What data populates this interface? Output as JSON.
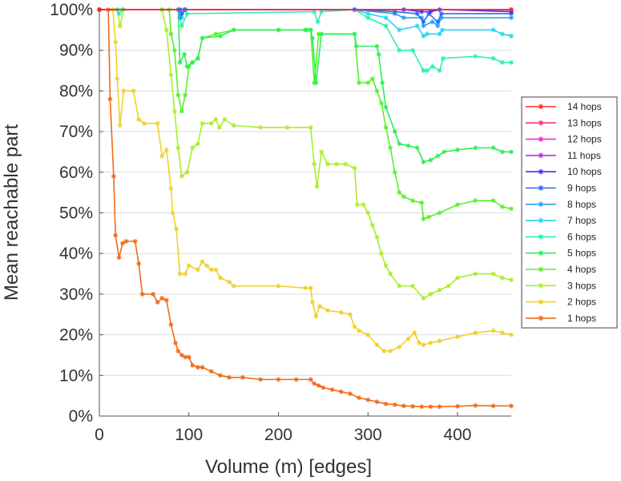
{
  "chart_data": {
    "type": "line",
    "title": "",
    "xlabel": "Volume (m) [edges]",
    "ylabel": "Mean reachable part",
    "xlim": [
      0,
      460
    ],
    "ylim": [
      0,
      100
    ],
    "xticks": [
      0,
      100,
      200,
      300,
      400
    ],
    "yticks": [
      0,
      10,
      20,
      30,
      40,
      50,
      60,
      70,
      80,
      90,
      100
    ],
    "ytick_labels": [
      "0%",
      "10%",
      "20%",
      "30%",
      "40%",
      "50%",
      "60%",
      "70%",
      "80%",
      "90%",
      "100%"
    ],
    "grid": "horizontal",
    "legend_position": "right",
    "marker": "asterisk",
    "series": [
      {
        "name": "14 hops",
        "color": "#ff2a2a",
        "points": [
          [
            0,
            100
          ],
          [
            460,
            100
          ]
        ]
      },
      {
        "name": "13 hops",
        "color": "#ff2a7f",
        "points": [
          [
            0,
            100
          ],
          [
            460,
            100
          ]
        ]
      },
      {
        "name": "12 hops",
        "color": "#f02ad0",
        "points": [
          [
            0,
            100
          ],
          [
            460,
            100
          ]
        ]
      },
      {
        "name": "11 hops",
        "color": "#c02af0",
        "points": [
          [
            0,
            100
          ],
          [
            460,
            100
          ]
        ]
      },
      {
        "name": "10 hops",
        "color": "#4a2af0",
        "points": [
          [
            0,
            100
          ],
          [
            340,
            100
          ],
          [
            360,
            99.5
          ],
          [
            370,
            99.5
          ],
          [
            380,
            100
          ],
          [
            460,
            99.5
          ]
        ]
      },
      {
        "name": "9 hops",
        "color": "#2a6af0",
        "points": [
          [
            0,
            100
          ],
          [
            90,
            100
          ],
          [
            92,
            99
          ],
          [
            96,
            100
          ],
          [
            285,
            100
          ],
          [
            330,
            99.5
          ],
          [
            355,
            99
          ],
          [
            362,
            97
          ],
          [
            368,
            99
          ],
          [
            378,
            97
          ],
          [
            382,
            99
          ],
          [
            460,
            99
          ]
        ]
      },
      {
        "name": "8 hops",
        "color": "#2aa0f0",
        "points": [
          [
            0,
            100
          ],
          [
            88,
            100
          ],
          [
            90,
            98
          ],
          [
            95,
            100
          ],
          [
            285,
            100
          ],
          [
            330,
            99
          ],
          [
            340,
            98
          ],
          [
            360,
            98
          ],
          [
            362,
            96
          ],
          [
            372,
            97
          ],
          [
            378,
            96
          ],
          [
            382,
            98
          ],
          [
            460,
            98
          ]
        ]
      },
      {
        "name": "7 hops",
        "color": "#2ad4f0",
        "points": [
          [
            0,
            100
          ],
          [
            90,
            100
          ],
          [
            92,
            98
          ],
          [
            95,
            100
          ],
          [
            285,
            100
          ],
          [
            300,
            99
          ],
          [
            320,
            98
          ],
          [
            335,
            95
          ],
          [
            355,
            96
          ],
          [
            362,
            93.5
          ],
          [
            366,
            94
          ],
          [
            380,
            94
          ],
          [
            383,
            95
          ],
          [
            440,
            95
          ],
          [
            450,
            94
          ],
          [
            460,
            93.5
          ]
        ]
      },
      {
        "name": "6 hops",
        "color": "#2af0b0",
        "points": [
          [
            0,
            100
          ],
          [
            20,
            100
          ],
          [
            22,
            99
          ],
          [
            26,
            100
          ],
          [
            88,
            100
          ],
          [
            92,
            96
          ],
          [
            98,
            99
          ],
          [
            240,
            99.5
          ],
          [
            244,
            97
          ],
          [
            248,
            99.5
          ],
          [
            285,
            100
          ],
          [
            300,
            98
          ],
          [
            320,
            96
          ],
          [
            335,
            90
          ],
          [
            350,
            90
          ],
          [
            362,
            85
          ],
          [
            366,
            85
          ],
          [
            372,
            86
          ],
          [
            380,
            85
          ],
          [
            384,
            88
          ],
          [
            420,
            88.5
          ],
          [
            440,
            88
          ],
          [
            450,
            87
          ],
          [
            460,
            87
          ]
        ]
      },
      {
        "name": "5 hops",
        "color": "#2af055",
        "points": [
          [
            0,
            100
          ],
          [
            88,
            100
          ],
          [
            90,
            87
          ],
          [
            95,
            89
          ],
          [
            98,
            86
          ],
          [
            104,
            87
          ],
          [
            110,
            88
          ],
          [
            115,
            93
          ],
          [
            135,
            93.5
          ],
          [
            150,
            95
          ],
          [
            200,
            95
          ],
          [
            230,
            95
          ],
          [
            236,
            95
          ],
          [
            238,
            93
          ],
          [
            242,
            82
          ],
          [
            248,
            94
          ],
          [
            285,
            94
          ],
          [
            287,
            91
          ],
          [
            310,
            91
          ],
          [
            312,
            89
          ],
          [
            316,
            82
          ],
          [
            320,
            76
          ],
          [
            330,
            70
          ],
          [
            335,
            67
          ],
          [
            345,
            66.5
          ],
          [
            355,
            66
          ],
          [
            362,
            62.5
          ],
          [
            370,
            63
          ],
          [
            378,
            64
          ],
          [
            385,
            65
          ],
          [
            400,
            65.5
          ],
          [
            420,
            66
          ],
          [
            440,
            66
          ],
          [
            450,
            65
          ],
          [
            460,
            65
          ]
        ]
      },
      {
        "name": "4 hops",
        "color": "#5af02a",
        "points": [
          [
            0,
            100
          ],
          [
            70,
            100
          ],
          [
            78,
            100
          ],
          [
            80,
            94
          ],
          [
            84,
            90
          ],
          [
            88,
            79
          ],
          [
            92,
            75
          ],
          [
            96,
            79
          ],
          [
            100,
            86
          ],
          [
            104,
            87
          ],
          [
            110,
            88
          ],
          [
            115,
            93
          ],
          [
            130,
            94
          ],
          [
            150,
            95
          ],
          [
            200,
            95
          ],
          [
            232,
            95
          ],
          [
            236,
            95
          ],
          [
            240,
            82
          ],
          [
            245,
            94
          ],
          [
            285,
            94
          ],
          [
            290,
            82
          ],
          [
            300,
            82
          ],
          [
            305,
            83
          ],
          [
            310,
            80
          ],
          [
            315,
            77
          ],
          [
            320,
            71
          ],
          [
            325,
            66
          ],
          [
            330,
            60
          ],
          [
            335,
            55
          ],
          [
            340,
            54
          ],
          [
            350,
            53
          ],
          [
            360,
            52.5
          ],
          [
            362,
            48.5
          ],
          [
            368,
            49
          ],
          [
            380,
            50
          ],
          [
            400,
            52
          ],
          [
            420,
            53
          ],
          [
            440,
            53
          ],
          [
            450,
            51.5
          ],
          [
            460,
            51
          ]
        ]
      },
      {
        "name": "3 hops",
        "color": "#aaee2a",
        "points": [
          [
            0,
            100
          ],
          [
            20,
            100
          ],
          [
            23,
            96
          ],
          [
            27,
            100
          ],
          [
            70,
            100
          ],
          [
            75,
            95
          ],
          [
            80,
            84
          ],
          [
            84,
            75
          ],
          [
            88,
            66
          ],
          [
            92,
            59
          ],
          [
            98,
            60
          ],
          [
            104,
            66
          ],
          [
            110,
            67
          ],
          [
            115,
            72
          ],
          [
            125,
            72
          ],
          [
            130,
            73
          ],
          [
            134,
            71
          ],
          [
            140,
            73
          ],
          [
            150,
            71.5
          ],
          [
            180,
            71
          ],
          [
            210,
            71
          ],
          [
            236,
            71
          ],
          [
            240,
            62
          ],
          [
            243,
            56.5
          ],
          [
            248,
            65
          ],
          [
            255,
            62
          ],
          [
            265,
            62
          ],
          [
            275,
            62
          ],
          [
            285,
            61
          ],
          [
            288,
            52
          ],
          [
            295,
            52
          ],
          [
            300,
            50
          ],
          [
            305,
            47
          ],
          [
            310,
            44
          ],
          [
            315,
            40
          ],
          [
            320,
            37
          ],
          [
            325,
            35
          ],
          [
            335,
            32
          ],
          [
            350,
            32
          ],
          [
            362,
            29
          ],
          [
            370,
            30
          ],
          [
            380,
            31
          ],
          [
            390,
            32
          ],
          [
            400,
            34
          ],
          [
            420,
            35
          ],
          [
            440,
            35
          ],
          [
            450,
            34
          ],
          [
            460,
            33.5
          ]
        ]
      },
      {
        "name": "2 hops",
        "color": "#f0d02a",
        "points": [
          [
            0,
            100
          ],
          [
            15,
            100
          ],
          [
            18,
            92
          ],
          [
            20,
            83
          ],
          [
            23,
            71.5
          ],
          [
            27,
            80
          ],
          [
            38,
            80
          ],
          [
            44,
            73
          ],
          [
            50,
            72
          ],
          [
            65,
            72
          ],
          [
            70,
            64
          ],
          [
            75,
            65.5
          ],
          [
            80,
            56
          ],
          [
            82,
            50
          ],
          [
            86,
            46
          ],
          [
            90,
            35
          ],
          [
            96,
            35
          ],
          [
            100,
            37
          ],
          [
            110,
            36
          ],
          [
            115,
            38
          ],
          [
            120,
            37
          ],
          [
            125,
            36
          ],
          [
            130,
            36
          ],
          [
            135,
            34
          ],
          [
            145,
            33
          ],
          [
            150,
            32
          ],
          [
            200,
            32
          ],
          [
            230,
            31.5
          ],
          [
            236,
            31.5
          ],
          [
            238,
            28
          ],
          [
            242,
            24.5
          ],
          [
            246,
            27
          ],
          [
            255,
            26
          ],
          [
            270,
            25.5
          ],
          [
            280,
            25
          ],
          [
            285,
            22
          ],
          [
            290,
            21
          ],
          [
            300,
            20
          ],
          [
            310,
            17.5
          ],
          [
            318,
            16
          ],
          [
            325,
            16
          ],
          [
            335,
            17
          ],
          [
            345,
            19
          ],
          [
            352,
            20.5
          ],
          [
            357,
            18
          ],
          [
            362,
            17.5
          ],
          [
            370,
            18
          ],
          [
            380,
            18.5
          ],
          [
            400,
            19.5
          ],
          [
            420,
            20.5
          ],
          [
            440,
            21
          ],
          [
            450,
            20.5
          ],
          [
            460,
            20
          ]
        ]
      },
      {
        "name": "1 hops",
        "color": "#f06a1a",
        "points": [
          [
            0,
            100
          ],
          [
            10,
            100
          ],
          [
            12,
            78
          ],
          [
            16,
            59
          ],
          [
            18,
            44.5
          ],
          [
            22,
            39
          ],
          [
            26,
            42.5
          ],
          [
            30,
            43
          ],
          [
            40,
            43
          ],
          [
            44,
            37.5
          ],
          [
            48,
            30
          ],
          [
            60,
            30
          ],
          [
            65,
            28
          ],
          [
            70,
            29
          ],
          [
            75,
            28.5
          ],
          [
            80,
            22.5
          ],
          [
            85,
            18
          ],
          [
            88,
            16
          ],
          [
            92,
            15
          ],
          [
            96,
            14.5
          ],
          [
            100,
            14.5
          ],
          [
            104,
            12.5
          ],
          [
            110,
            12
          ],
          [
            115,
            12
          ],
          [
            125,
            11
          ],
          [
            135,
            10
          ],
          [
            145,
            9.5
          ],
          [
            160,
            9.5
          ],
          [
            180,
            9
          ],
          [
            200,
            9
          ],
          [
            220,
            9
          ],
          [
            236,
            9
          ],
          [
            240,
            8
          ],
          [
            245,
            7.5
          ],
          [
            250,
            7
          ],
          [
            260,
            6.5
          ],
          [
            270,
            6
          ],
          [
            280,
            5.5
          ],
          [
            290,
            4.5
          ],
          [
            300,
            4
          ],
          [
            310,
            3.5
          ],
          [
            320,
            3
          ],
          [
            330,
            2.8
          ],
          [
            340,
            2.5
          ],
          [
            350,
            2.4
          ],
          [
            360,
            2.3
          ],
          [
            370,
            2.3
          ],
          [
            380,
            2.3
          ],
          [
            400,
            2.4
          ],
          [
            420,
            2.6
          ],
          [
            440,
            2.5
          ],
          [
            460,
            2.5
          ]
        ]
      }
    ]
  }
}
